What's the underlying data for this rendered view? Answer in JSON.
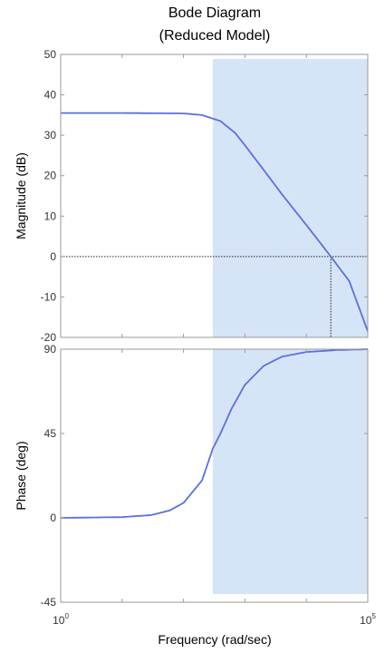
{
  "chart_data": {
    "type": "line",
    "title": "Bode Diagram",
    "subtitle": "(Reduced Model)",
    "xlabel": "Frequency (rad/sec)",
    "x_scale": "log",
    "x_range": [
      1,
      100000
    ],
    "x_tick_labels": [
      {
        "base": "10",
        "exp": "0"
      },
      {
        "base": "10",
        "exp": "5"
      }
    ],
    "highlight_band": {
      "x_from": 300,
      "x_to": 100000,
      "color": "#d6e4f7"
    },
    "series_color": "#5b6fe0",
    "panels": [
      {
        "name": "magnitude",
        "ylabel": "Magnitude (dB)",
        "ylim": [
          -20,
          50
        ],
        "y_ticks": [
          -20,
          -10,
          0,
          10,
          20,
          30,
          40,
          50
        ],
        "y_tick_labels": [
          "-20",
          "-10",
          "0",
          "10",
          "20",
          "30",
          "40",
          "50"
        ],
        "reference_line_y": 0,
        "crossover_x": 25000,
        "series": {
          "x": [
            1,
            10,
            100,
            200,
            400,
            700,
            1000,
            2000,
            4000,
            10000,
            25000,
            50000,
            100000
          ],
          "y": [
            35.5,
            35.5,
            35.4,
            35.0,
            33.5,
            30.5,
            27.5,
            21.5,
            15.4,
            7.8,
            0,
            -6.1,
            -18.5
          ]
        }
      },
      {
        "name": "phase",
        "ylabel": "Phase (deg)",
        "ylim": [
          -45,
          90
        ],
        "y_ticks": [
          -45,
          0,
          45,
          90
        ],
        "y_tick_labels": [
          "-45",
          "0",
          "45",
          "90"
        ],
        "series": {
          "x": [
            1,
            10,
            30,
            60,
            100,
            200,
            300,
            400,
            600,
            1000,
            2000,
            4000,
            10000,
            30000,
            100000
          ],
          "y": [
            0,
            0.4,
            1.5,
            4,
            8,
            20,
            37,
            45,
            58,
            71,
            81,
            86,
            88.5,
            89.5,
            90
          ]
        }
      }
    ]
  }
}
